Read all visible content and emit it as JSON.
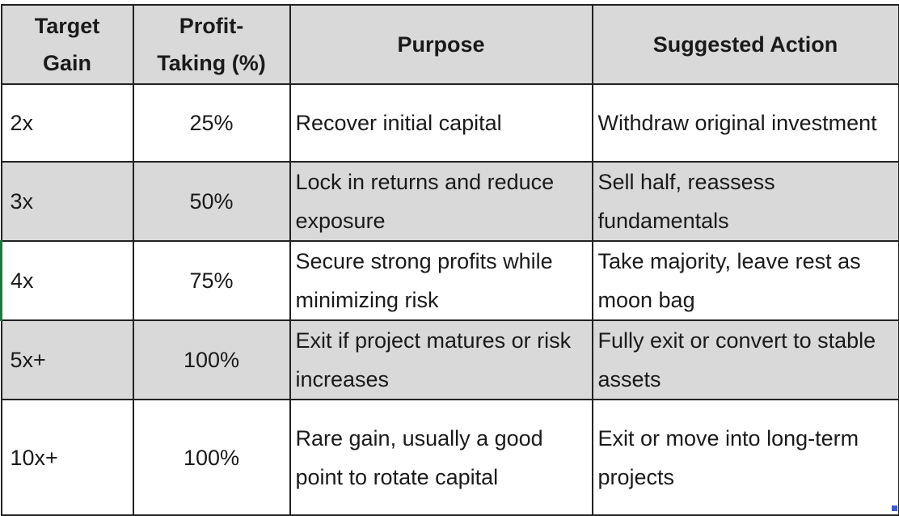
{
  "headers": [
    "Target Gain",
    "Profit-Taking (%)",
    "Purpose",
    "Suggested Action"
  ],
  "header_lines": {
    "target_gain": [
      "Target",
      "Gain"
    ],
    "profit_taking": [
      "Profit-",
      "Taking (%)"
    ]
  },
  "rows": [
    {
      "gain": "2x",
      "pct": "25%",
      "purpose": "Recover initial capital",
      "action": "Withdraw original investment"
    },
    {
      "gain": "3x",
      "pct": "50%",
      "purpose": "Lock in returns and reduce exposure",
      "action": "Sell half, reassess fundamentals"
    },
    {
      "gain": "4x",
      "pct": "75%",
      "purpose": "Secure strong profits while minimizing risk",
      "action": "Take majority, leave rest as moon bag"
    },
    {
      "gain": "5x+",
      "pct": "100%",
      "purpose": "Exit if project matures or risk increases",
      "action": "Fully exit or convert to stable assets"
    },
    {
      "gain": "10x+",
      "pct": "100%",
      "purpose": "Rare gain, usually a good point to rotate capital",
      "action": "Exit or move into long-term projects"
    }
  ],
  "colors": {
    "header_bg": "#d9d9d9",
    "stripe_bg": "#d9d9d9",
    "border": "#222222",
    "selection_green": "#1e7a3a"
  }
}
